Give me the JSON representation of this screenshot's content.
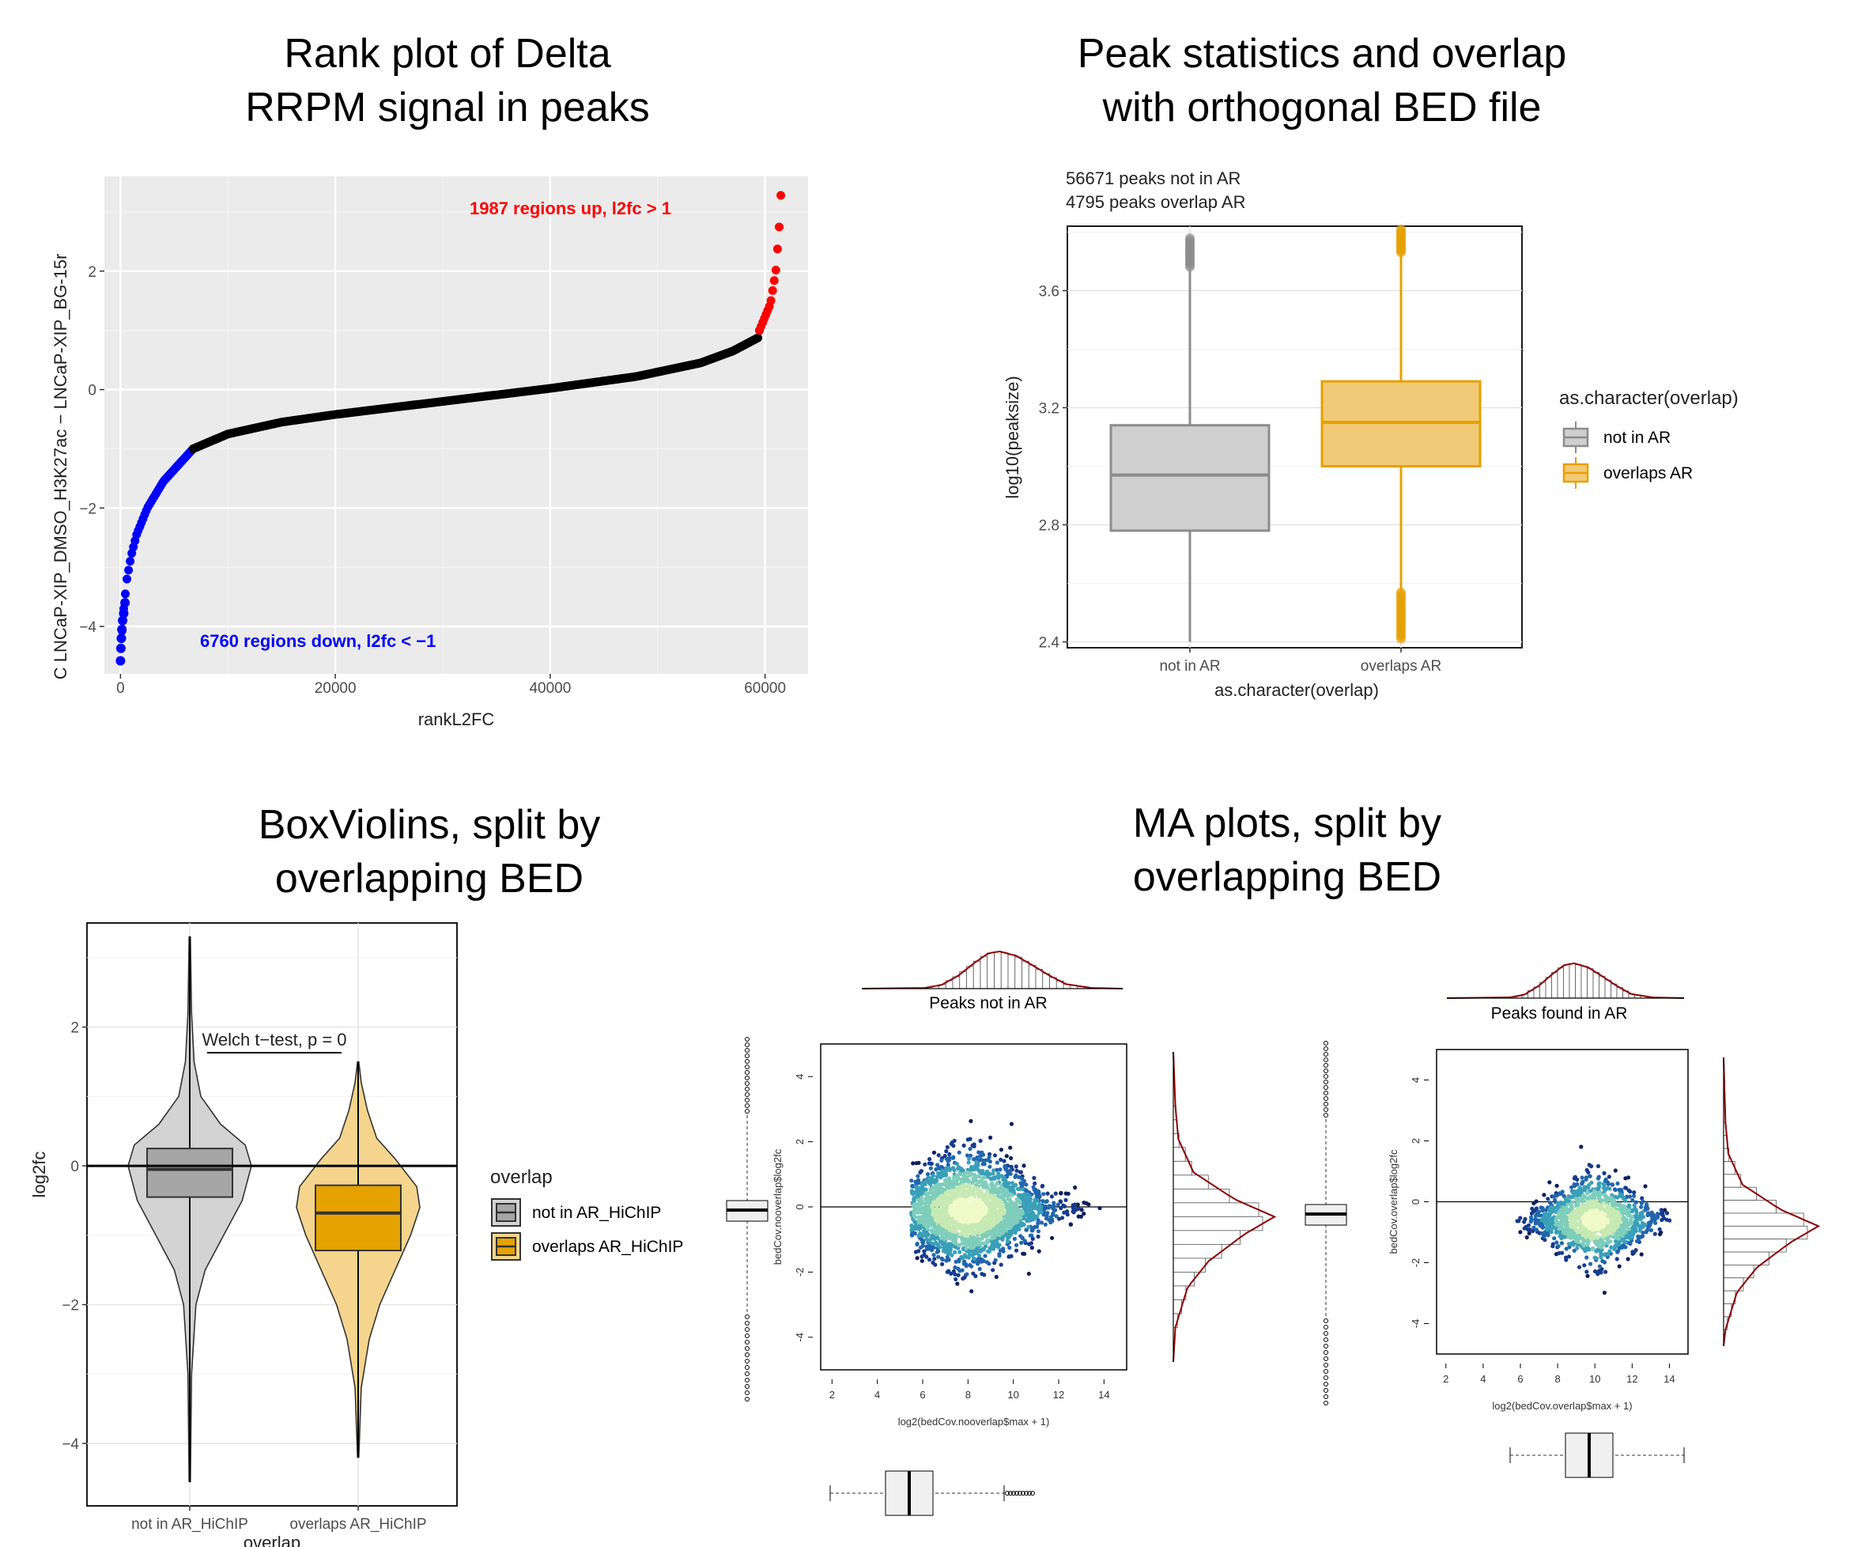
{
  "chart_data": [
    {
      "id": "rank",
      "type": "scatter",
      "title_lines": [
        "Rank plot of Delta",
        "RRPM signal in peaks"
      ],
      "xlabel": "rankL2FC",
      "ylabel": "C LNCaP-XIP_DMSO_H3K27ac  −  LNCaP-XIP_BG-15r",
      "xlim": [
        -1500,
        64000
      ],
      "ylim": [
        -4.8,
        3.6
      ],
      "xticks": [
        0,
        20000,
        40000,
        60000
      ],
      "xtick_labels": [
        "0",
        "20000",
        "40000",
        "60000"
      ],
      "yticks": [
        -4,
        -2,
        0,
        2
      ],
      "ytick_labels": [
        "−4",
        "−2",
        "0",
        "2"
      ],
      "grid": true,
      "n_points": 61466,
      "annotations": [
        {
          "text": "1987  regions up, l2fc > 1",
          "color": "#ff0000"
        },
        {
          "text": "6760  regions down, l2fc < −1",
          "color": "#0000ff"
        }
      ],
      "curve": [
        [
          0,
          -4.58
        ],
        [
          100,
          -4.2
        ],
        [
          300,
          -3.7
        ],
        [
          600,
          -3.2
        ],
        [
          1000,
          -2.8
        ],
        [
          1500,
          -2.45
        ],
        [
          2500,
          -2.0
        ],
        [
          4000,
          -1.55
        ],
        [
          5500,
          -1.25
        ],
        [
          6760,
          -1.0
        ],
        [
          10000,
          -0.75
        ],
        [
          15000,
          -0.55
        ],
        [
          20000,
          -0.42
        ],
        [
          30000,
          -0.2
        ],
        [
          40000,
          0.02
        ],
        [
          48000,
          0.22
        ],
        [
          54000,
          0.45
        ],
        [
          57000,
          0.65
        ],
        [
          59400,
          0.88
        ],
        [
          59479,
          1.0
        ],
        [
          60500,
          1.45
        ],
        [
          61000,
          2.0
        ],
        [
          61300,
          2.7
        ],
        [
          61466,
          3.28
        ]
      ],
      "segments": [
        {
          "name": "down",
          "color": "#0000ff",
          "x_range": [
            0,
            6760
          ]
        },
        {
          "name": "unchanged",
          "color": "#000000",
          "x_range": [
            6760,
            59479
          ]
        },
        {
          "name": "up",
          "color": "#ff0000",
          "x_range": [
            59479,
            61466
          ]
        }
      ]
    },
    {
      "id": "peakstats",
      "type": "box",
      "title_lines": [
        "Peak statistics and overlap",
        "with orthogonal BED file"
      ],
      "subtitle_lines": [
        "56671 peaks not in AR",
        "4795 peaks overlap AR"
      ],
      "xlabel": "as.character(overlap)",
      "ylabel": "log10(peaksize)",
      "ylim": [
        2.38,
        3.82
      ],
      "yticks": [
        2.4,
        2.8,
        3.2,
        3.6
      ],
      "ytick_labels": [
        "2.4",
        "2.8",
        "3.2",
        "3.6"
      ],
      "categories": [
        "not in AR",
        "overlaps AR"
      ],
      "legend_title": "as.character(overlap)",
      "legend_position": "right",
      "boxes": [
        {
          "q1": 2.78,
          "median": 2.97,
          "q3": 3.14,
          "wlow": 2.4,
          "whigh": 3.67,
          "out_low": [],
          "out_high": [
            3.68,
            3.78
          ],
          "fill": "#cfcfcf",
          "line": "#8c8c8c"
        },
        {
          "q1": 3.0,
          "median": 3.15,
          "q3": 3.29,
          "wlow": 2.57,
          "whigh": 3.72,
          "out_low": [
            2.41,
            2.57
          ],
          "out_high": [
            3.73,
            3.81
          ],
          "fill": "#f2ca77",
          "line": "#e6a000"
        }
      ]
    },
    {
      "id": "boxviolin",
      "type": "violin",
      "title_lines": [
        "BoxViolins, split by",
        "overlapping BED"
      ],
      "xlabel": "overlap",
      "ylabel": "log2fc",
      "ylim": [
        -4.9,
        3.5
      ],
      "yticks": [
        -4,
        -2,
        0,
        2
      ],
      "ytick_labels": [
        "−4",
        "−2",
        "0",
        "2"
      ],
      "categories": [
        "not in AR_HiChIP",
        "overlaps AR_HiChIP"
      ],
      "annotation": "Welch t−test, p =  0",
      "hline": 0,
      "legend_title": "overlap",
      "legend_position": "right",
      "legend_entries": [
        "not in AR_HiChIP",
        "overlaps AR_HiChIP"
      ],
      "violins": [
        {
          "q1": -0.45,
          "median": -0.05,
          "q3": 0.25,
          "wlow": -1.5,
          "whigh": 1.3,
          "min": -4.55,
          "max": 3.3,
          "fill": "#d3d3d3",
          "box": "#a6a6a6",
          "profile": [
            [
              -4.55,
              0.01
            ],
            [
              -3.0,
              0.03
            ],
            [
              -2.0,
              0.1
            ],
            [
              -1.5,
              0.25
            ],
            [
              -1.0,
              0.55
            ],
            [
              -0.5,
              0.85
            ],
            [
              0,
              1.0
            ],
            [
              0.3,
              0.9
            ],
            [
              0.6,
              0.5
            ],
            [
              1.0,
              0.18
            ],
            [
              1.5,
              0.07
            ],
            [
              2.2,
              0.03
            ],
            [
              3.3,
              0.01
            ]
          ]
        },
        {
          "q1": -1.22,
          "median": -0.68,
          "q3": -0.28,
          "wlow": -2.5,
          "whigh": 0.9,
          "min": -4.2,
          "max": 1.5,
          "fill": "#f5d58e",
          "box": "#e6a300",
          "profile": [
            [
              -4.2,
              0.01
            ],
            [
              -3.2,
              0.05
            ],
            [
              -2.5,
              0.18
            ],
            [
              -2.0,
              0.35
            ],
            [
              -1.5,
              0.6
            ],
            [
              -1.0,
              0.85
            ],
            [
              -0.6,
              1.0
            ],
            [
              -0.3,
              0.95
            ],
            [
              0.1,
              0.6
            ],
            [
              0.4,
              0.3
            ],
            [
              0.8,
              0.15
            ],
            [
              1.2,
              0.05
            ],
            [
              1.5,
              0.01
            ]
          ]
        }
      ]
    },
    {
      "id": "ma",
      "type": "scatter",
      "title_lines": [
        "MA plots, split by",
        "overlapping BED"
      ],
      "panels": [
        {
          "label": "Peaks not in AR",
          "xlabel": "log2(bedCov.nooverlap$max + 1)",
          "ylabel": "bedCov.nooverlap$log2fc",
          "xlim": [
            1.5,
            15
          ],
          "ylim": [
            -5,
            5
          ],
          "xticks": [
            2,
            4,
            6,
            8,
            10,
            12,
            14
          ],
          "yticks": [
            -4,
            -2,
            0,
            2,
            4
          ],
          "center": [
            8,
            -0.1
          ],
          "spread_x": 4,
          "spread_y": 2.2
        },
        {
          "label": "Peaks found in AR",
          "xlabel": "log2(bedCov.overlap$max + 1)",
          "ylabel": "bedCov.overlap$log2fc",
          "xlim": [
            1.5,
            15
          ],
          "ylim": [
            -5,
            5
          ],
          "xticks": [
            2,
            4,
            6,
            8,
            10,
            12,
            14
          ],
          "yticks": [
            -4,
            -2,
            0,
            2,
            4
          ],
          "center": [
            10,
            -0.6
          ],
          "spread_x": 3.5,
          "spread_y": 1.8
        }
      ]
    }
  ]
}
